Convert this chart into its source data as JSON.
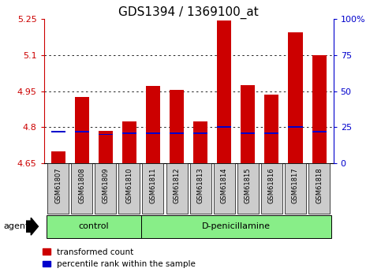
{
  "title": "GDS1394 / 1369100_at",
  "samples": [
    "GSM61807",
    "GSM61808",
    "GSM61809",
    "GSM61810",
    "GSM61811",
    "GSM61812",
    "GSM61813",
    "GSM61814",
    "GSM61815",
    "GSM61816",
    "GSM61817",
    "GSM61818"
  ],
  "transformed_count": [
    4.7,
    4.925,
    4.785,
    4.825,
    4.97,
    4.955,
    4.825,
    5.245,
    4.975,
    4.935,
    5.195,
    5.1
  ],
  "percentile_rank": [
    22,
    22,
    20,
    21,
    21,
    21,
    21,
    25,
    21,
    21,
    25,
    22
  ],
  "ymin": 4.65,
  "ymax": 5.25,
  "yticks": [
    4.65,
    4.8,
    4.95,
    5.1,
    5.25
  ],
  "yright_ticks": [
    0,
    25,
    50,
    75,
    100
  ],
  "groups": [
    {
      "label": "control",
      "start": 0,
      "end": 4
    },
    {
      "label": "D-penicillamine",
      "start": 4,
      "end": 12
    }
  ],
  "bar_color": "#cc0000",
  "percentile_color": "#0000cc",
  "bar_width": 0.6,
  "background_color": "#ffffff",
  "plot_bg_color": "#ffffff",
  "group_bg_color": "#88ee88",
  "tick_bg_color": "#cccccc",
  "left_axis_color": "#cc0000",
  "right_axis_color": "#0000cc",
  "grid_color": "#000000",
  "title_fontsize": 11,
  "tick_fontsize": 8,
  "label_fontsize": 7.5,
  "agent_label": "agent",
  "legend_items": [
    "transformed count",
    "percentile rank within the sample"
  ]
}
